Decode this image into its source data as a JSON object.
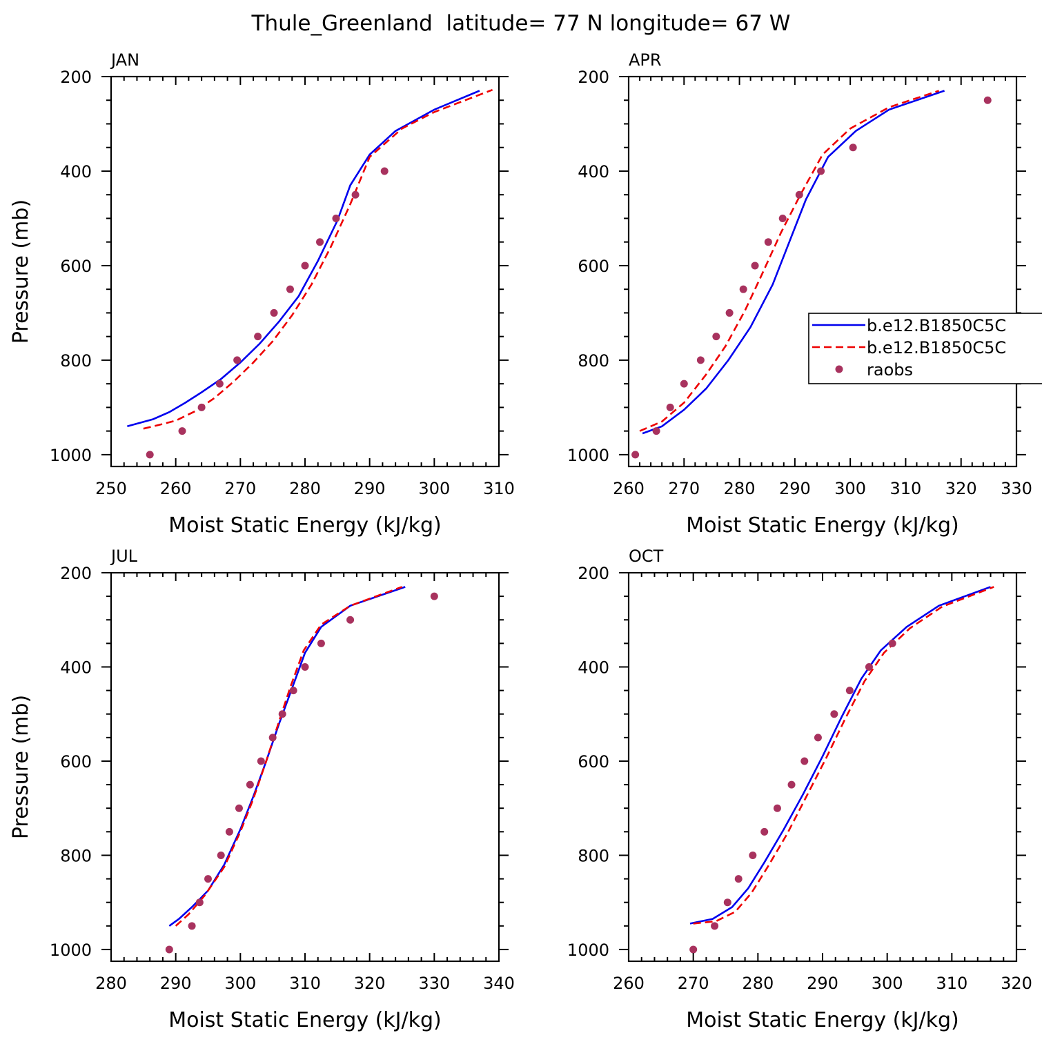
{
  "figure": {
    "title": "Thule_Greenland  latitude= 77 N longitude= 67 W"
  },
  "legend": {
    "entries": [
      {
        "label": "b.e12.B1850C5C",
        "color": "#0000ee",
        "style": "solid"
      },
      {
        "label": "b.e12.B1850C5C",
        "color": "#ee0000",
        "style": "dashed"
      },
      {
        "label": "raobs",
        "color": "#a8325e",
        "style": "marker"
      }
    ]
  },
  "chart_data": [
    {
      "type": "line",
      "panel": "JAN",
      "xlabel": "Moist Static Energy (kJ/kg)",
      "ylabel": "Pressure (mb)",
      "xlim": [
        250,
        310
      ],
      "ylim": [
        1025,
        200
      ],
      "xticks": [
        250,
        260,
        270,
        280,
        290,
        300,
        310
      ],
      "yticks": [
        200,
        400,
        600,
        800,
        1000
      ],
      "y_inverted": true,
      "series": [
        {
          "style": "solid",
          "color": "#0000ee",
          "x": [
            252.5,
            256.5,
            259,
            261.5,
            264,
            267,
            270,
            273,
            276,
            279,
            282,
            285,
            287,
            290,
            294,
            300,
            307
          ],
          "y": [
            940,
            925,
            910,
            890,
            868,
            840,
            805,
            765,
            718,
            665,
            590,
            505,
            430,
            365,
            315,
            270,
            230
          ]
        },
        {
          "style": "dashed",
          "color": "#ee0000",
          "x": [
            255,
            258,
            260,
            263,
            266,
            269,
            272,
            275,
            278,
            281,
            284,
            287,
            290,
            295,
            300,
            309
          ],
          "y": [
            945,
            935,
            928,
            908,
            880,
            845,
            805,
            760,
            705,
            640,
            560,
            470,
            370,
            310,
            275,
            228
          ]
        },
        {
          "style": "marker",
          "color": "#a8325e",
          "x": [
            256,
            261,
            264,
            266.8,
            269.5,
            272.7,
            275.2,
            277.7,
            280,
            282.3,
            284.8,
            287.8,
            292.3
          ],
          "y": [
            1000,
            950,
            900,
            850,
            800,
            750,
            700,
            650,
            600,
            550,
            500,
            450,
            400
          ]
        }
      ]
    },
    {
      "type": "line",
      "panel": "APR",
      "xlabel": "Moist Static Energy (kJ/kg)",
      "ylabel": "",
      "xlim": [
        260,
        330
      ],
      "ylim": [
        1025,
        200
      ],
      "xticks": [
        260,
        270,
        280,
        290,
        300,
        310,
        320,
        330
      ],
      "yticks": [
        200,
        400,
        600,
        800,
        1000
      ],
      "y_inverted": true,
      "series": [
        {
          "style": "solid",
          "color": "#0000ee",
          "x": [
            262.5,
            266,
            270,
            274,
            278,
            282,
            286,
            289,
            292,
            296,
            301,
            307,
            317
          ],
          "y": [
            955,
            940,
            905,
            860,
            800,
            730,
            640,
            550,
            460,
            370,
            315,
            270,
            230
          ]
        },
        {
          "style": "dashed",
          "color": "#ee0000",
          "x": [
            262,
            266,
            270,
            274,
            277.5,
            281,
            284,
            287.5,
            291,
            295,
            300,
            307,
            316
          ],
          "y": [
            950,
            930,
            890,
            830,
            770,
            695,
            620,
            530,
            450,
            365,
            310,
            265,
            230
          ]
        },
        {
          "style": "marker",
          "color": "#a8325e",
          "x": [
            261.2,
            265,
            267.5,
            270,
            273,
            275.8,
            278.2,
            280.7,
            282.8,
            285.2,
            287.8,
            290.8,
            294.7,
            300.5,
            324.8
          ],
          "y": [
            1000,
            950,
            900,
            850,
            800,
            750,
            700,
            650,
            600,
            550,
            500,
            450,
            400,
            350,
            250
          ]
        }
      ]
    },
    {
      "type": "line",
      "panel": "JUL",
      "xlabel": "Moist Static Energy (kJ/kg)",
      "ylabel": "Pressure (mb)",
      "xlim": [
        280,
        340
      ],
      "ylim": [
        1025,
        200
      ],
      "xticks": [
        280,
        290,
        300,
        310,
        320,
        330,
        340
      ],
      "yticks": [
        200,
        400,
        600,
        800,
        1000
      ],
      "y_inverted": true,
      "series": [
        {
          "style": "solid",
          "color": "#0000ee",
          "x": [
            289,
            290.5,
            292.5,
            295,
            297.5,
            300,
            302,
            304,
            306,
            308,
            310,
            312.5,
            317,
            325.5
          ],
          "y": [
            950,
            935,
            910,
            875,
            820,
            745,
            675,
            600,
            520,
            445,
            370,
            315,
            270,
            230
          ]
        },
        {
          "style": "dashed",
          "color": "#ee0000",
          "x": [
            290,
            292,
            294.5,
            297.5,
            300,
            302,
            304,
            306,
            307.8,
            309.8,
            312.5,
            317,
            325
          ],
          "y": [
            950,
            925,
            885,
            825,
            750,
            680,
            600,
            515,
            440,
            365,
            310,
            270,
            230
          ]
        },
        {
          "style": "marker",
          "color": "#a8325e",
          "x": [
            289,
            292.5,
            293.7,
            295,
            297,
            298.3,
            299.8,
            301.5,
            303.2,
            305,
            306.5,
            308.2,
            310,
            312.5,
            317,
            330
          ],
          "y": [
            1000,
            950,
            900,
            850,
            800,
            750,
            700,
            650,
            600,
            550,
            500,
            450,
            400,
            350,
            300,
            250
          ]
        }
      ]
    },
    {
      "type": "line",
      "panel": "OCT",
      "xlabel": "Moist Static Energy (kJ/kg)",
      "ylabel": "",
      "xlim": [
        260,
        320
      ],
      "ylim": [
        1025,
        200
      ],
      "xticks": [
        260,
        270,
        280,
        290,
        300,
        310,
        320
      ],
      "yticks": [
        200,
        400,
        600,
        800,
        1000
      ],
      "y_inverted": true,
      "series": [
        {
          "style": "solid",
          "color": "#0000ee",
          "x": [
            269.5,
            273,
            276,
            278.5,
            281,
            284,
            287,
            290,
            293,
            296,
            299,
            303,
            308,
            316
          ],
          "y": [
            945,
            935,
            910,
            870,
            815,
            745,
            670,
            590,
            505,
            425,
            365,
            315,
            270,
            230
          ]
        },
        {
          "style": "dashed",
          "color": "#ee0000",
          "x": [
            270,
            273.5,
            276.5,
            279,
            281.5,
            284.5,
            287.5,
            290.5,
            293.5,
            296.5,
            299.5,
            303.5,
            308.5,
            316.5
          ],
          "y": [
            945,
            940,
            920,
            880,
            825,
            755,
            675,
            595,
            510,
            430,
            370,
            318,
            272,
            230
          ]
        },
        {
          "style": "marker",
          "color": "#a8325e",
          "x": [
            270,
            273.3,
            275.3,
            277,
            279.2,
            281,
            283,
            285.2,
            287.2,
            289.3,
            291.8,
            294.2,
            297.2,
            300.8
          ],
          "y": [
            1000,
            950,
            900,
            850,
            800,
            750,
            700,
            650,
            600,
            550,
            500,
            450,
            400,
            350
          ]
        }
      ]
    }
  ]
}
